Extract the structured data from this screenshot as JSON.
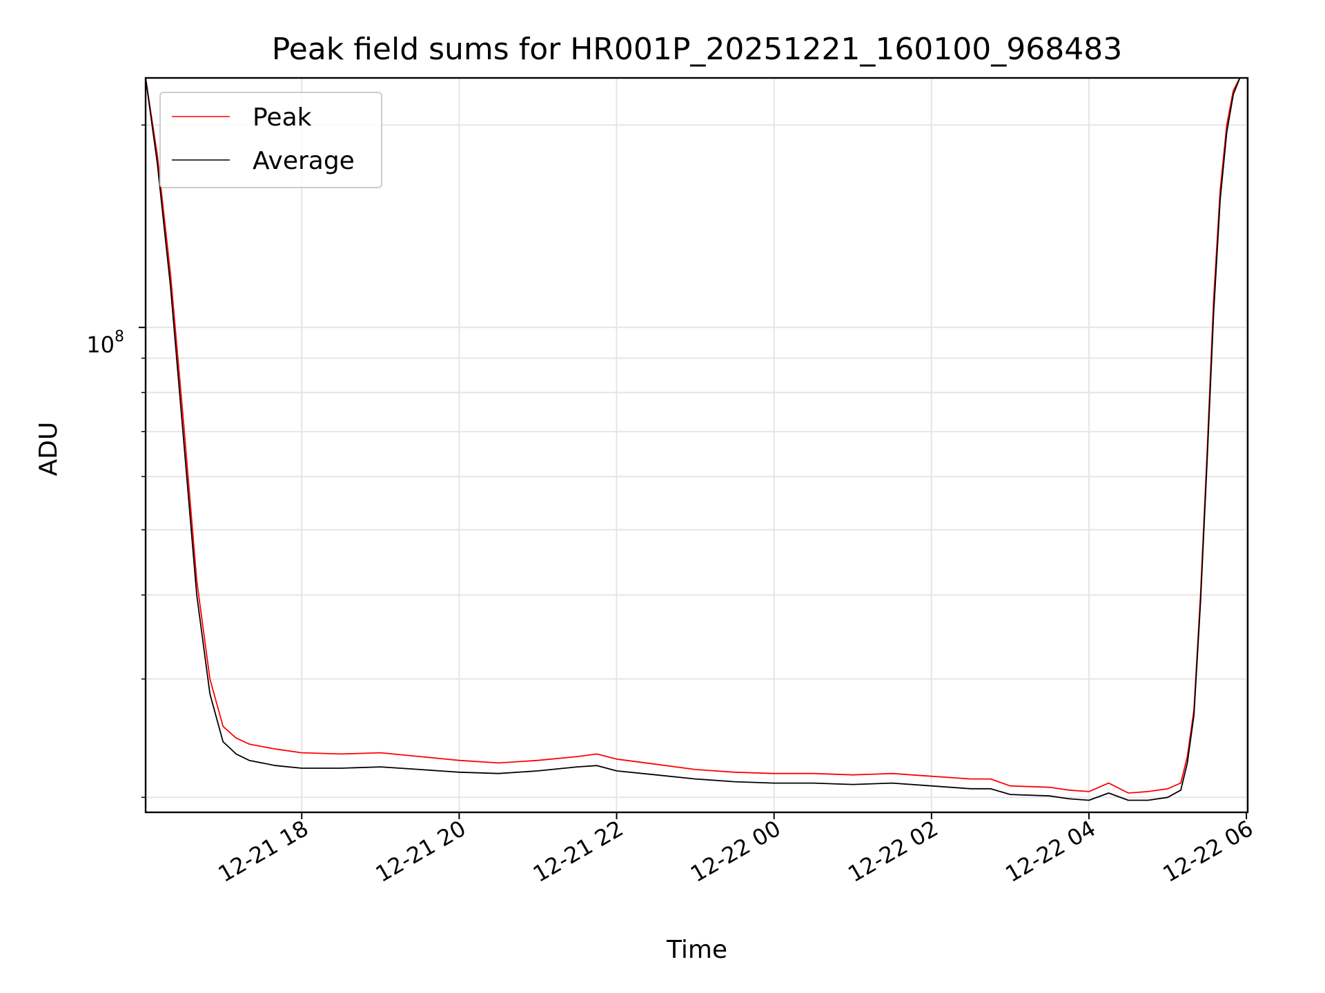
{
  "chart_data": {
    "type": "line",
    "title": "Peak field sums for HR001P_20251221_160100_968483",
    "xlabel": "Time",
    "ylabel": "ADU",
    "yscale": "log",
    "grid": true,
    "legend_position": "top-left",
    "x_tick_labels": [
      "12-21 18",
      "12-21 20",
      "12-21 22",
      "12-22 00",
      "12-22 02",
      "12-22 04",
      "12-22 06"
    ],
    "y_tick_label": {
      "base": "10",
      "exponent": "8"
    },
    "xlim": [
      "2025-12-21 16:01",
      "2025-12-22 06:01"
    ],
    "ylim": [
      19000000,
      235000000
    ],
    "series": [
      {
        "name": "Peak",
        "color": "#ff0000",
        "x": [
          "2025-12-21 16:01",
          "2025-12-21 16:10",
          "2025-12-21 16:20",
          "2025-12-21 16:30",
          "2025-12-21 16:40",
          "2025-12-21 16:50",
          "2025-12-21 17:00",
          "2025-12-21 17:10",
          "2025-12-21 17:20",
          "2025-12-21 17:40",
          "2025-12-21 18:00",
          "2025-12-21 18:30",
          "2025-12-21 19:00",
          "2025-12-21 19:30",
          "2025-12-21 20:00",
          "2025-12-21 20:30",
          "2025-12-21 21:00",
          "2025-12-21 21:30",
          "2025-12-21 21:45",
          "2025-12-21 22:00",
          "2025-12-21 22:30",
          "2025-12-21 23:00",
          "2025-12-21 23:30",
          "2025-12-22 00:00",
          "2025-12-22 00:30",
          "2025-12-22 01:00",
          "2025-12-22 01:30",
          "2025-12-22 02:00",
          "2025-12-22 02:30",
          "2025-12-22 02:45",
          "2025-12-22 03:00",
          "2025-12-22 03:30",
          "2025-12-22 03:45",
          "2025-12-22 04:00",
          "2025-12-22 04:15",
          "2025-12-22 04:30",
          "2025-12-22 04:45",
          "2025-12-22 05:00",
          "2025-12-22 05:10",
          "2025-12-22 05:15",
          "2025-12-22 05:20",
          "2025-12-22 05:25",
          "2025-12-22 05:30",
          "2025-12-22 05:35",
          "2025-12-22 05:40",
          "2025-12-22 05:45",
          "2025-12-22 05:50",
          "2025-12-22 05:55",
          "2025-12-22 06:00"
        ],
        "y": [
          235000000,
          180000000,
          120000000,
          72000000,
          42000000,
          30000000,
          25500000,
          24500000,
          24000000,
          23600000,
          23300000,
          23200000,
          23300000,
          23000000,
          22700000,
          22500000,
          22700000,
          23000000,
          23200000,
          22800000,
          22400000,
          22000000,
          21800000,
          21700000,
          21700000,
          21600000,
          21700000,
          21500000,
          21300000,
          21300000,
          20800000,
          20700000,
          20500000,
          20400000,
          21000000,
          20300000,
          20400000,
          20600000,
          21000000,
          23000000,
          27000000,
          40000000,
          65000000,
          110000000,
          160000000,
          200000000,
          225000000,
          235000000,
          235000000
        ]
      },
      {
        "name": "Average",
        "color": "#000000",
        "x": [
          "2025-12-21 16:01",
          "2025-12-21 16:10",
          "2025-12-21 16:20",
          "2025-12-21 16:30",
          "2025-12-21 16:40",
          "2025-12-21 16:50",
          "2025-12-21 17:00",
          "2025-12-21 17:10",
          "2025-12-21 17:20",
          "2025-12-21 17:40",
          "2025-12-21 18:00",
          "2025-12-21 18:30",
          "2025-12-21 19:00",
          "2025-12-21 19:30",
          "2025-12-21 20:00",
          "2025-12-21 20:30",
          "2025-12-21 21:00",
          "2025-12-21 21:30",
          "2025-12-21 21:45",
          "2025-12-21 22:00",
          "2025-12-21 22:30",
          "2025-12-21 23:00",
          "2025-12-21 23:30",
          "2025-12-22 00:00",
          "2025-12-22 00:30",
          "2025-12-22 01:00",
          "2025-12-22 01:30",
          "2025-12-22 02:00",
          "2025-12-22 02:30",
          "2025-12-22 02:45",
          "2025-12-22 03:00",
          "2025-12-22 03:30",
          "2025-12-22 03:45",
          "2025-12-22 04:00",
          "2025-12-22 04:15",
          "2025-12-22 04:30",
          "2025-12-22 04:45",
          "2025-12-22 05:00",
          "2025-12-22 05:10",
          "2025-12-22 05:15",
          "2025-12-22 05:20",
          "2025-12-22 05:25",
          "2025-12-22 05:30",
          "2025-12-22 05:35",
          "2025-12-22 05:40",
          "2025-12-22 05:45",
          "2025-12-22 05:50",
          "2025-12-22 05:55",
          "2025-12-22 06:00"
        ],
        "y": [
          235000000,
          175000000,
          115000000,
          68000000,
          40000000,
          28500000,
          24200000,
          23200000,
          22700000,
          22300000,
          22100000,
          22100000,
          22200000,
          22000000,
          21800000,
          21700000,
          21900000,
          22200000,
          22300000,
          21900000,
          21600000,
          21300000,
          21100000,
          21000000,
          21000000,
          20900000,
          21000000,
          20800000,
          20600000,
          20600000,
          20200000,
          20100000,
          19900000,
          19800000,
          20300000,
          19800000,
          19800000,
          20000000,
          20500000,
          22500000,
          26500000,
          39000000,
          63000000,
          105000000,
          155000000,
          195000000,
          222000000,
          235000000,
          235000000
        ]
      }
    ]
  }
}
